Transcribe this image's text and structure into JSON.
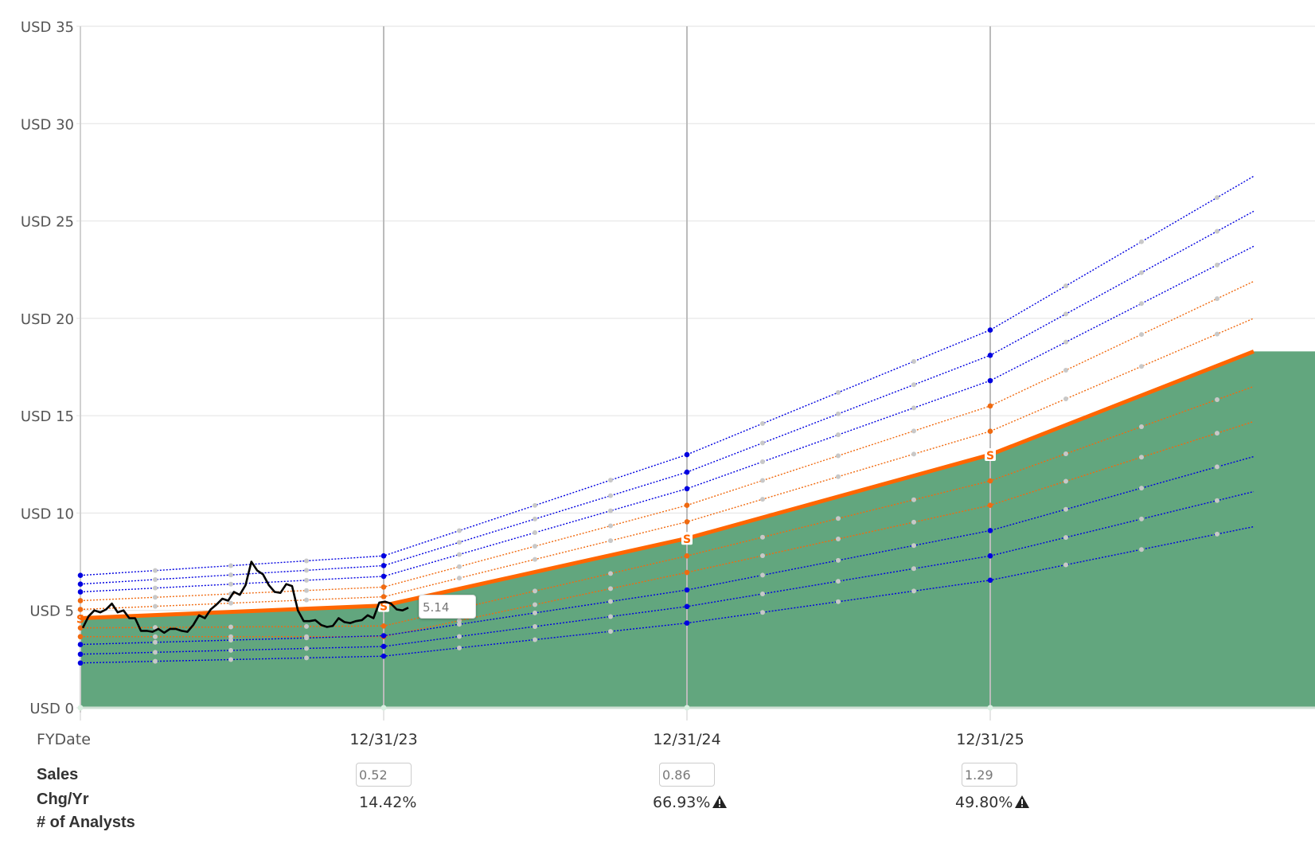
{
  "chart_data": {
    "type": "line",
    "currency": "USD",
    "y_ticks": [
      "USD 0",
      "USD 5",
      "USD 10",
      "USD 15",
      "USD 20",
      "USD 25",
      "USD 30",
      "USD 35"
    ],
    "ylim": [
      0,
      35
    ],
    "x_label": "FYDate",
    "fy_dates": [
      "12/31/23",
      "12/31/24",
      "12/31/25"
    ],
    "x": [
      "start",
      "12/31/23",
      "12/31/24",
      "12/31/25",
      "end"
    ],
    "grid": true,
    "value_line": [
      4.6,
      5.25,
      8.7,
      13.0,
      18.3
    ],
    "multiple_lines": [
      {
        "color": "blue",
        "values": [
          6.8,
          7.8,
          13.0,
          19.4,
          27.3
        ]
      },
      {
        "color": "blue",
        "values": [
          6.35,
          7.3,
          12.1,
          18.1,
          25.5
        ]
      },
      {
        "color": "blue",
        "values": [
          5.95,
          6.75,
          11.25,
          16.8,
          23.7
        ]
      },
      {
        "color": "orange",
        "values": [
          5.5,
          6.2,
          10.4,
          15.5,
          21.9
        ]
      },
      {
        "color": "orange",
        "values": [
          5.05,
          5.7,
          9.55,
          14.2,
          20.0
        ]
      },
      {
        "color": "orange",
        "values": [
          4.1,
          4.2,
          7.8,
          11.65,
          16.5
        ]
      },
      {
        "color": "orange",
        "values": [
          3.65,
          3.65,
          6.95,
          10.4,
          14.7
        ]
      },
      {
        "color": "blue",
        "values": [
          3.25,
          3.7,
          6.05,
          9.1,
          12.9
        ]
      },
      {
        "color": "blue",
        "values": [
          2.75,
          3.15,
          5.2,
          7.8,
          11.1
        ]
      },
      {
        "color": "blue",
        "values": [
          2.3,
          2.65,
          4.35,
          6.55,
          9.3
        ]
      }
    ],
    "price_history": [
      4.1,
      4.7,
      5.0,
      4.9,
      5.05,
      5.35,
      4.9,
      5.0,
      4.6,
      4.6,
      3.95,
      3.95,
      3.9,
      4.05,
      3.85,
      4.05,
      4.05,
      3.95,
      3.9,
      4.25,
      4.75,
      4.6,
      5.05,
      5.3,
      5.6,
      5.5,
      5.95,
      5.8,
      6.3,
      7.5,
      7.05,
      6.85,
      6.3,
      5.95,
      5.9,
      6.35,
      6.25,
      5.0,
      4.45,
      4.45,
      4.5,
      4.25,
      4.15,
      4.2,
      4.6,
      4.4,
      4.35,
      4.45,
      4.5,
      4.75,
      4.6,
      5.4,
      5.45,
      5.35,
      5.05,
      5.0,
      5.14
    ],
    "current_price": "5.14",
    "series_colors": {
      "fill": "#62a67e",
      "value_line": "#ff6600",
      "blue": "#0000e0",
      "orange": "#f06a10",
      "price": "#000000"
    },
    "marker_label": "S"
  },
  "table": {
    "sales_label": "Sales",
    "chg_label": "Chg/Yr",
    "analysts_label": "# of Analysts",
    "sales": [
      "0.52",
      "0.86",
      "1.29"
    ],
    "chg": [
      "14.42%",
      "66.93%",
      "49.80%"
    ],
    "warning_icon": [
      "none",
      "warning-icon",
      "warning-icon"
    ]
  }
}
